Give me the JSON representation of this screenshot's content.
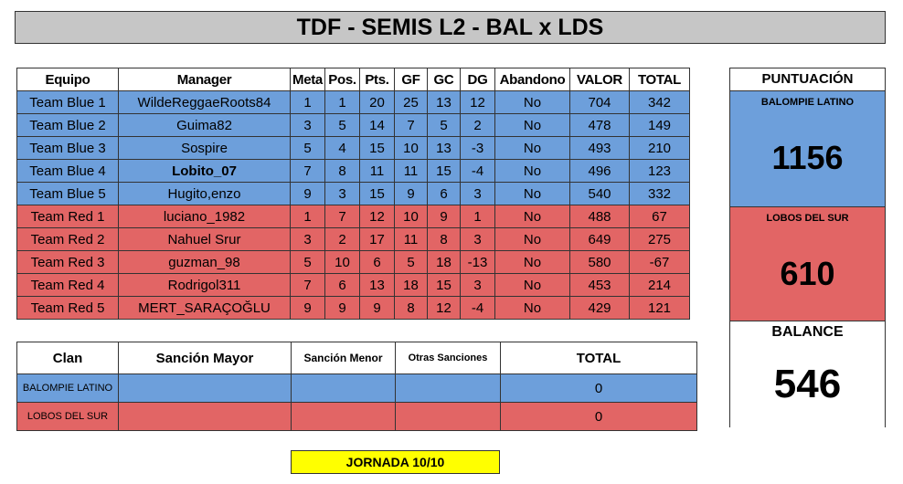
{
  "title": "TDF - SEMIS L2 - BAL x LDS",
  "colors": {
    "blue_team": "#6d9fdb",
    "red_team": "#e26565",
    "header_bg": "#c6c6c6",
    "jornada_bg": "#ffff00"
  },
  "main_table": {
    "headers": [
      "Equipo",
      "Manager",
      "Meta",
      "Pos.",
      "Pts.",
      "GF",
      "GC",
      "DG",
      "Abandono",
      "VALOR",
      "TOTAL"
    ],
    "rows": [
      {
        "team": "Team Blue 1",
        "manager": "WildeReggaeRoots84",
        "meta": "1",
        "pos": "1",
        "pts": "20",
        "gf": "25",
        "gc": "13",
        "dg": "12",
        "abandono": "No",
        "valor": "704",
        "total": "342"
      },
      {
        "team": "Team Blue 2",
        "manager": "Guima82",
        "meta": "3",
        "pos": "5",
        "pts": "14",
        "gf": "7",
        "gc": "5",
        "dg": "2",
        "abandono": "No",
        "valor": "478",
        "total": "149"
      },
      {
        "team": "Team Blue 3",
        "manager": "Sospire",
        "meta": "5",
        "pos": "4",
        "pts": "15",
        "gf": "10",
        "gc": "13",
        "dg": "-3",
        "abandono": "No",
        "valor": "493",
        "total": "210"
      },
      {
        "team": "Team Blue 4",
        "manager": "Lobito_07",
        "meta": "7",
        "pos": "8",
        "pts": "11",
        "gf": "11",
        "gc": "15",
        "dg": "-4",
        "abandono": "No",
        "valor": "496",
        "total": "123"
      },
      {
        "team": "Team Blue 5",
        "manager": "Hugito,enzo",
        "meta": "9",
        "pos": "3",
        "pts": "15",
        "gf": "9",
        "gc": "6",
        "dg": "3",
        "abandono": "No",
        "valor": "540",
        "total": "332"
      },
      {
        "team": "Team Red 1",
        "manager": "luciano_1982",
        "meta": "1",
        "pos": "7",
        "pts": "12",
        "gf": "10",
        "gc": "9",
        "dg": "1",
        "abandono": "No",
        "valor": "488",
        "total": "67"
      },
      {
        "team": "Team Red 2",
        "manager": "Nahuel Srur",
        "meta": "3",
        "pos": "2",
        "pts": "17",
        "gf": "11",
        "gc": "8",
        "dg": "3",
        "abandono": "No",
        "valor": "649",
        "total": "275"
      },
      {
        "team": "Team Red 3",
        "manager": "guzman_98",
        "meta": "5",
        "pos": "10",
        "pts": "6",
        "gf": "5",
        "gc": "18",
        "dg": "-13",
        "abandono": "No",
        "valor": "580",
        "total": "-67"
      },
      {
        "team": "Team Red 4",
        "manager": "Rodrigol311",
        "meta": "7",
        "pos": "6",
        "pts": "13",
        "gf": "18",
        "gc": "15",
        "dg": "3",
        "abandono": "No",
        "valor": "453",
        "total": "214"
      },
      {
        "team": "Team Red 5",
        "manager": "MERT_SARAÇOĞLU",
        "meta": "9",
        "pos": "9",
        "pts": "9",
        "gf": "8",
        "gc": "12",
        "dg": "-4",
        "abandono": "No",
        "valor": "429",
        "total": "121"
      }
    ]
  },
  "sanctions_table": {
    "headers": [
      "Clan",
      "Sanción Mayor",
      "Sanción Menor",
      "Otras Sanciones",
      "TOTAL"
    ],
    "rows": [
      {
        "clan": "BALOMPIE LATINO",
        "mayor": "",
        "menor": "",
        "otras": "",
        "total": "0"
      },
      {
        "clan": "LOBOS DEL SUR",
        "mayor": "",
        "menor": "",
        "otras": "",
        "total": "0"
      }
    ]
  },
  "score": {
    "header": "PUNTUACIÓN",
    "team1_name": "BALOMPIE LATINO",
    "team1_score": "1156",
    "team2_name": "LOBOS DEL SUR",
    "team2_score": "610",
    "balance_label": "BALANCE",
    "balance_value": "546"
  },
  "jornada": "JORNADA 10/10"
}
